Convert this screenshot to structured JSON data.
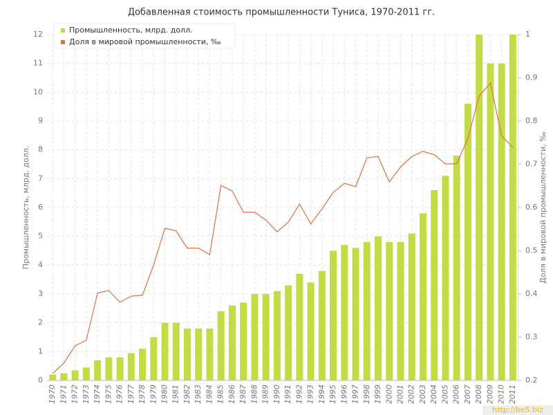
{
  "chart_data": {
    "type": "bar",
    "title": "Добавленная стоимость промышленности Туниса, 1970-2011 гг.",
    "y_label": "Промышленность, млрд. долл.",
    "y2_label": "Доля в мировой промышленности, ‰",
    "watermark": "http://be5.biz",
    "categories": [
      "1970",
      "1971",
      "1972",
      "1973",
      "1974",
      "1975",
      "1976",
      "1977",
      "1978",
      "1979",
      "1980",
      "1981",
      "1982",
      "1983",
      "1984",
      "1985",
      "1986",
      "1987",
      "1988",
      "1989",
      "1990",
      "1991",
      "1992",
      "1993",
      "1994",
      "1995",
      "1996",
      "1997",
      "1998",
      "1999",
      "2000",
      "2001",
      "2002",
      "2003",
      "2004",
      "2005",
      "2006",
      "2007",
      "2008",
      "2009",
      "2010",
      "2011"
    ],
    "series": [
      {
        "name": "Промышленность, млрд. долл.",
        "type": "bar",
        "color": "#c3dc45",
        "values": [
          0.2,
          0.25,
          0.35,
          0.45,
          0.7,
          0.8,
          0.8,
          0.95,
          1.1,
          1.5,
          2.0,
          2.0,
          1.8,
          1.8,
          1.8,
          2.4,
          2.6,
          2.7,
          3.0,
          3.0,
          3.1,
          3.3,
          3.7,
          3.4,
          3.8,
          4.5,
          4.7,
          4.6,
          4.8,
          5.0,
          4.8,
          4.8,
          5.1,
          5.8,
          6.6,
          7.1,
          7.8,
          9.6,
          12,
          11,
          11,
          12
        ]
      },
      {
        "name": "Доля в мировой промышленности, ‰",
        "type": "line",
        "axis": "y2",
        "color": "#e07040",
        "values": [
          0.216,
          0.24,
          0.28,
          0.293,
          0.402,
          0.408,
          0.381,
          0.395,
          0.397,
          0.467,
          0.552,
          0.546,
          0.506,
          0.506,
          0.491,
          0.651,
          0.638,
          0.589,
          0.589,
          0.571,
          0.544,
          0.566,
          0.608,
          0.562,
          0.597,
          0.635,
          0.656,
          0.648,
          0.715,
          0.718,
          0.659,
          0.694,
          0.718,
          0.73,
          0.722,
          0.701,
          0.701,
          0.76,
          0.858,
          0.888,
          0.766,
          0.739
        ]
      }
    ],
    "ylim": [
      0,
      12
    ],
    "yticks": [
      0,
      1,
      2,
      3,
      4,
      5,
      6,
      7,
      8,
      9,
      10,
      11,
      12
    ],
    "y2lim": [
      0.2,
      1
    ],
    "y2ticks": [
      0.2,
      0.3,
      0.4,
      0.5,
      0.6,
      0.7,
      0.8,
      0.9,
      1
    ],
    "grid": true,
    "legend": "top-left"
  }
}
